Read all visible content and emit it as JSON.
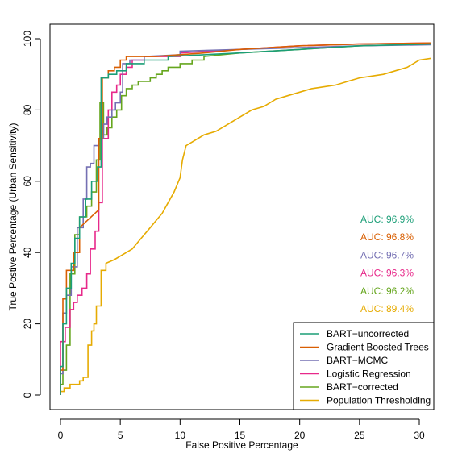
{
  "chart_data": {
    "type": "line",
    "title": "",
    "xlabel": "False Positive Percentage",
    "ylabel": "True Postive Percentage (Urban Sensitivity)",
    "xlim": [
      0,
      31
    ],
    "ylim": [
      0,
      100
    ],
    "xticks": [
      0,
      5,
      10,
      15,
      20,
      25,
      30
    ],
    "yticks": [
      0,
      20,
      40,
      60,
      80,
      100
    ],
    "grid": false,
    "legend_position": "bottom-right",
    "series": [
      {
        "name": "BART−uncorrected",
        "color": "#1b9e77",
        "auc": "AUC: 96.9%",
        "points": [
          [
            0,
            0
          ],
          [
            0,
            8
          ],
          [
            0.2,
            8
          ],
          [
            0.2,
            20
          ],
          [
            0.5,
            20
          ],
          [
            0.5,
            30
          ],
          [
            0.9,
            30
          ],
          [
            0.9,
            37
          ],
          [
            1.2,
            37
          ],
          [
            1.2,
            44
          ],
          [
            1.6,
            44
          ],
          [
            1.6,
            50
          ],
          [
            2.1,
            50
          ],
          [
            2.1,
            55
          ],
          [
            2.6,
            55
          ],
          [
            2.6,
            60
          ],
          [
            3.1,
            60
          ],
          [
            3.1,
            64
          ],
          [
            3.4,
            64
          ],
          [
            3.4,
            89
          ],
          [
            4,
            89
          ],
          [
            4,
            90
          ],
          [
            4.7,
            90
          ],
          [
            4.7,
            91
          ],
          [
            5.5,
            91
          ],
          [
            5.5,
            93
          ],
          [
            7,
            93
          ],
          [
            7,
            94
          ],
          [
            9,
            94
          ],
          [
            9,
            95
          ],
          [
            15,
            96
          ],
          [
            20,
            97
          ],
          [
            25,
            98
          ],
          [
            31,
            98.5
          ]
        ]
      },
      {
        "name": "Gradient Boosted Trees",
        "color": "#d95f02",
        "auc": "AUC: 96.8%",
        "points": [
          [
            0,
            0
          ],
          [
            0,
            7
          ],
          [
            0.2,
            7
          ],
          [
            0.2,
            27
          ],
          [
            0.5,
            27
          ],
          [
            0.5,
            35
          ],
          [
            1.1,
            35
          ],
          [
            1.1,
            40
          ],
          [
            1.6,
            40
          ],
          [
            1.6,
            47
          ],
          [
            3.2,
            52
          ],
          [
            3.2,
            72
          ],
          [
            3.5,
            72
          ],
          [
            3.5,
            89
          ],
          [
            4,
            89
          ],
          [
            4,
            91
          ],
          [
            4.5,
            91
          ],
          [
            4.5,
            92
          ],
          [
            5,
            92
          ],
          [
            5,
            94
          ],
          [
            5.5,
            94
          ],
          [
            5.5,
            95
          ],
          [
            8,
            95
          ],
          [
            12,
            96
          ],
          [
            15,
            97
          ],
          [
            20,
            98
          ],
          [
            25,
            98.5
          ],
          [
            31,
            98.8
          ]
        ]
      },
      {
        "name": "BART−MCMC",
        "color": "#7570b3",
        "auc": "AUC: 96.7%",
        "points": [
          [
            0,
            0
          ],
          [
            0,
            6
          ],
          [
            0.2,
            6
          ],
          [
            0.2,
            23
          ],
          [
            0.5,
            23
          ],
          [
            0.5,
            28
          ],
          [
            0.9,
            28
          ],
          [
            0.9,
            36
          ],
          [
            1.4,
            36
          ],
          [
            1.4,
            47
          ],
          [
            1.9,
            47
          ],
          [
            1.9,
            55
          ],
          [
            2.2,
            55
          ],
          [
            2.2,
            64
          ],
          [
            2.5,
            64
          ],
          [
            2.5,
            65
          ],
          [
            2.8,
            65
          ],
          [
            2.8,
            70
          ],
          [
            3.2,
            70
          ],
          [
            3.2,
            72
          ],
          [
            3.6,
            72
          ],
          [
            3.6,
            76
          ],
          [
            3.9,
            76
          ],
          [
            3.9,
            78
          ],
          [
            4.3,
            78
          ],
          [
            4.3,
            80
          ],
          [
            4.6,
            80
          ],
          [
            4.6,
            82
          ],
          [
            5,
            82
          ],
          [
            5,
            85
          ],
          [
            5.2,
            85
          ],
          [
            5.2,
            93
          ],
          [
            5.8,
            93
          ],
          [
            5.8,
            94
          ],
          [
            7,
            94
          ],
          [
            7,
            95
          ],
          [
            10,
            95.5
          ],
          [
            10,
            96.5
          ],
          [
            15,
            97
          ],
          [
            20,
            97.5
          ],
          [
            25,
            98
          ],
          [
            31,
            98.3
          ]
        ]
      },
      {
        "name": "Logistic Regression",
        "color": "#e7298a",
        "auc": "AUC: 96.3%",
        "points": [
          [
            0,
            0
          ],
          [
            0,
            15
          ],
          [
            0.4,
            15
          ],
          [
            0.4,
            19
          ],
          [
            0.8,
            19
          ],
          [
            0.8,
            24
          ],
          [
            1.1,
            24
          ],
          [
            1.1,
            26
          ],
          [
            1.4,
            26
          ],
          [
            1.4,
            28
          ],
          [
            1.8,
            28
          ],
          [
            1.8,
            30
          ],
          [
            2.2,
            30
          ],
          [
            2.2,
            34
          ],
          [
            2.5,
            34
          ],
          [
            2.5,
            41
          ],
          [
            2.9,
            41
          ],
          [
            2.9,
            46
          ],
          [
            3.2,
            46
          ],
          [
            3.2,
            54
          ],
          [
            3.5,
            54
          ],
          [
            3.5,
            72
          ],
          [
            4,
            72
          ],
          [
            4,
            80
          ],
          [
            4.3,
            80
          ],
          [
            4.3,
            85
          ],
          [
            4.7,
            85
          ],
          [
            4.7,
            87
          ],
          [
            5,
            87
          ],
          [
            5,
            90
          ],
          [
            5.5,
            90
          ],
          [
            5.5,
            92
          ],
          [
            6,
            92
          ],
          [
            6,
            94
          ],
          [
            7,
            94
          ],
          [
            7,
            95
          ],
          [
            10,
            95
          ],
          [
            10,
            96
          ],
          [
            15,
            97
          ],
          [
            20,
            98
          ],
          [
            25,
            98.5
          ],
          [
            31,
            98.8
          ]
        ]
      },
      {
        "name": "BART−corrected",
        "color": "#66a61e",
        "auc": "AUC: 96.2%",
        "points": [
          [
            0,
            0
          ],
          [
            0,
            3
          ],
          [
            0.2,
            3
          ],
          [
            0.2,
            7
          ],
          [
            0.5,
            7
          ],
          [
            0.5,
            14
          ],
          [
            0.8,
            14
          ],
          [
            0.8,
            34
          ],
          [
            1.2,
            34
          ],
          [
            1.2,
            45
          ],
          [
            1.6,
            45
          ],
          [
            1.6,
            50
          ],
          [
            2.2,
            50
          ],
          [
            2.2,
            53
          ],
          [
            2.6,
            53
          ],
          [
            2.6,
            57
          ],
          [
            3,
            57
          ],
          [
            3,
            66
          ],
          [
            3.3,
            66
          ],
          [
            3.3,
            82
          ],
          [
            3.6,
            82
          ],
          [
            3.6,
            73
          ],
          [
            3.9,
            73
          ],
          [
            3.9,
            75
          ],
          [
            4.3,
            75
          ],
          [
            4.3,
            78
          ],
          [
            4.7,
            78
          ],
          [
            4.7,
            80
          ],
          [
            5.1,
            80
          ],
          [
            5.1,
            84
          ],
          [
            5.5,
            84
          ],
          [
            5.5,
            86
          ],
          [
            6,
            86
          ],
          [
            6,
            87
          ],
          [
            6.5,
            87
          ],
          [
            6.5,
            88
          ],
          [
            7.5,
            88
          ],
          [
            7.5,
            89
          ],
          [
            8,
            89
          ],
          [
            8,
            90
          ],
          [
            8.5,
            90
          ],
          [
            8.5,
            91
          ],
          [
            9,
            91
          ],
          [
            9,
            92
          ],
          [
            10,
            92
          ],
          [
            10,
            93
          ],
          [
            11,
            93
          ],
          [
            11,
            94
          ],
          [
            12,
            94
          ],
          [
            12,
            95
          ],
          [
            15,
            96
          ],
          [
            20,
            97
          ],
          [
            25,
            98
          ],
          [
            31,
            98.5
          ]
        ]
      },
      {
        "name": "Population Thresholding",
        "color": "#e6ab02",
        "auc": "AUC: 89.4%",
        "points": [
          [
            0,
            0
          ],
          [
            0,
            1
          ],
          [
            0.3,
            1
          ],
          [
            0.3,
            2
          ],
          [
            0.8,
            2
          ],
          [
            0.8,
            3
          ],
          [
            1.6,
            3
          ],
          [
            1.6,
            4
          ],
          [
            1.9,
            4
          ],
          [
            1.9,
            5
          ],
          [
            2.3,
            5
          ],
          [
            2.3,
            14
          ],
          [
            2.6,
            14
          ],
          [
            2.6,
            18
          ],
          [
            2.8,
            18
          ],
          [
            2.8,
            20
          ],
          [
            3,
            20
          ],
          [
            3,
            25
          ],
          [
            3.4,
            25
          ],
          [
            3.4,
            35
          ],
          [
            3.8,
            35
          ],
          [
            3.8,
            37
          ],
          [
            4.5,
            38
          ],
          [
            5,
            39
          ],
          [
            5.5,
            40
          ],
          [
            6,
            41
          ],
          [
            6.5,
            43
          ],
          [
            7,
            45
          ],
          [
            7.5,
            47
          ],
          [
            8,
            49
          ],
          [
            8.5,
            51
          ],
          [
            9,
            54
          ],
          [
            9.5,
            57
          ],
          [
            10,
            61
          ],
          [
            10.2,
            66
          ],
          [
            10.5,
            70
          ],
          [
            11,
            71
          ],
          [
            12,
            73
          ],
          [
            13,
            74
          ],
          [
            14,
            76
          ],
          [
            15,
            78
          ],
          [
            16,
            80
          ],
          [
            17,
            81
          ],
          [
            18,
            83
          ],
          [
            19,
            84
          ],
          [
            20,
            85
          ],
          [
            21,
            86
          ],
          [
            22,
            86.5
          ],
          [
            23,
            87
          ],
          [
            24,
            88
          ],
          [
            25,
            89
          ],
          [
            26,
            89.5
          ],
          [
            27,
            90
          ],
          [
            28,
            91
          ],
          [
            29,
            92
          ],
          [
            30,
            94
          ],
          [
            31,
            94.5
          ]
        ]
      }
    ]
  }
}
